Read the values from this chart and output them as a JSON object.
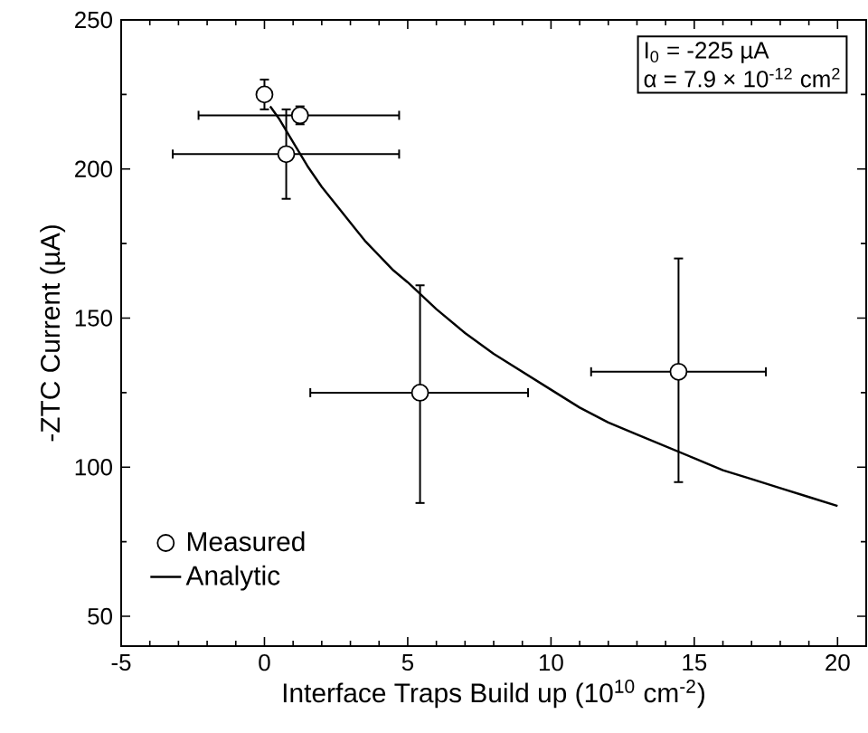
{
  "chart_data": {
    "type": "scatter",
    "xlabel": "Interface Traps Build up (10$^{10}$ cm$^{-2}$)",
    "ylabel": "-ZTC Current (µA)",
    "annotations": [
      "I$_{0}$ = -225 µA",
      "α = 7.9 × 10$^{-12}$ cm$^{2}$"
    ],
    "xlim": [
      -5,
      21
    ],
    "ylim": [
      40,
      250
    ],
    "xticks": [
      -5,
      0,
      5,
      10,
      15,
      20
    ],
    "yticks": [
      50,
      100,
      150,
      200,
      250
    ],
    "legend": "bottom left",
    "series": [
      {
        "name": "Measured",
        "marker": "circle",
        "color": "#000000",
        "x": [
          0,
          1.24,
          0.76,
          5.43,
          14.45
        ],
        "values": [
          225,
          218,
          205,
          125,
          132
        ],
        "errors": [
          [
            220,
            230
          ],
          [
            215,
            221
          ],
          [
            190,
            220
          ],
          [
            88,
            161
          ],
          [
            95,
            170
          ]
        ],
        "xerrors": [
          null,
          [
            -2.3,
            4.7
          ],
          [
            -3.2,
            4.7
          ],
          [
            1.6,
            9.2
          ],
          [
            11.4,
            17.5
          ]
        ]
      },
      {
        "name": "Analytic",
        "type": "line",
        "marker": "none",
        "color": "#000000",
        "x": [
          0.2,
          0.5,
          1,
          1.5,
          2,
          2.5,
          3,
          3.5,
          4,
          4.5,
          5,
          6,
          7,
          8,
          9,
          10,
          11,
          12,
          13,
          14,
          15,
          16,
          17,
          18,
          19,
          20
        ],
        "values": [
          221,
          217,
          209,
          201,
          194,
          188,
          182,
          176,
          171,
          166,
          162,
          153,
          145,
          138,
          132,
          126,
          120,
          115,
          111,
          107,
          103,
          99,
          96,
          93,
          90,
          87
        ]
      }
    ]
  }
}
